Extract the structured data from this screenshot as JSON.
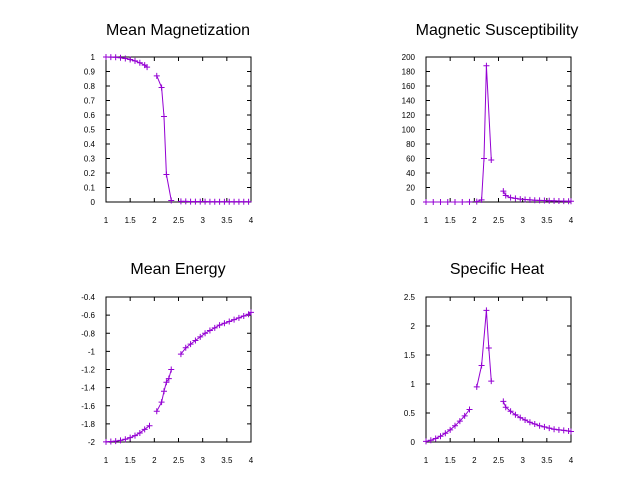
{
  "colors": {
    "series": "#9400d3",
    "axis": "#000000",
    "background": "#ffffff"
  },
  "chart_data": [
    {
      "id": "magnetization",
      "type": "line",
      "title": "Mean Magnetization",
      "xlabel": "",
      "ylabel": "",
      "xlim": [
        1,
        4
      ],
      "ylim": [
        0,
        1
      ],
      "xticks": [
        "1",
        "1.5",
        "2",
        "2.5",
        "3",
        "3.5",
        "4"
      ],
      "yticks": [
        "0",
        "0.1",
        "0.2",
        "0.3",
        "0.4",
        "0.5",
        "0.6",
        "0.7",
        "0.8",
        "0.9",
        "1"
      ],
      "grid": false,
      "series": [
        {
          "segments": [
            {
              "x": [
                1.0,
                1.1,
                1.2,
                1.3,
                1.4,
                1.5,
                1.6,
                1.7,
                1.8,
                1.85
              ],
              "y": [
                1.0,
                0.999,
                0.998,
                0.995,
                0.99,
                0.983,
                0.973,
                0.96,
                0.944,
                0.93
              ]
            },
            {
              "x": [
                2.05,
                2.15,
                2.2,
                2.25,
                2.35
              ],
              "y": [
                0.87,
                0.79,
                0.59,
                0.19,
                0.01
              ]
            },
            {
              "x": [
                2.55,
                2.65,
                2.75,
                2.85,
                2.95,
                3.05,
                3.15,
                3.25,
                3.35,
                3.45,
                3.55,
                3.65,
                3.75,
                3.85,
                3.95
              ],
              "y": [
                0.004,
                0.004,
                0.003,
                0.003,
                0.003,
                0.003,
                0.002,
                0.002,
                0.002,
                0.002,
                0.002,
                0.002,
                0.002,
                0.002,
                0.002
              ]
            }
          ]
        }
      ]
    },
    {
      "id": "susceptibility",
      "type": "line",
      "title": "Magnetic Susceptibility",
      "xlabel": "",
      "ylabel": "",
      "xlim": [
        1,
        4
      ],
      "ylim": [
        0,
        200
      ],
      "xticks": [
        "1",
        "1.5",
        "2",
        "2.5",
        "3",
        "3.5",
        "4"
      ],
      "yticks": [
        "0",
        "20",
        "40",
        "60",
        "80",
        "100",
        "120",
        "140",
        "160",
        "180",
        "200"
      ],
      "grid": false,
      "series": [
        {
          "segments": [
            {
              "x": [
                1.0,
                1.15,
                1.3,
                1.45,
                1.6,
                1.75,
                1.9
              ],
              "y": [
                0,
                0,
                0,
                0,
                0,
                0,
                0.2
              ]
            },
            {
              "x": [
                2.05,
                2.15,
                2.2,
                2.25,
                2.35
              ],
              "y": [
                0.5,
                3,
                60,
                188,
                58
              ]
            },
            {
              "x": [
                2.6,
                2.65,
                2.75,
                2.85,
                2.95,
                3.05,
                3.15,
                3.25,
                3.35,
                3.45,
                3.55,
                3.65,
                3.75,
                3.85,
                3.95,
                4.0
              ],
              "y": [
                15,
                9,
                6,
                5,
                4,
                3.5,
                3,
                2.5,
                2.2,
                2,
                1.8,
                1.6,
                1.4,
                1.2,
                1,
                1
              ]
            }
          ]
        }
      ]
    },
    {
      "id": "energy",
      "type": "line",
      "title": "Mean Energy",
      "xlabel": "",
      "ylabel": "",
      "xlim": [
        1,
        4
      ],
      "ylim": [
        -2,
        -0.4
      ],
      "xticks": [
        "1",
        "1.5",
        "2",
        "2.5",
        "3",
        "3.5",
        "4"
      ],
      "yticks": [
        "-2",
        "-1.8",
        "-1.6",
        "-1.4",
        "-1.2",
        "-1",
        "-0.8",
        "-0.6",
        "-0.4"
      ],
      "grid": false,
      "series": [
        {
          "segments": [
            {
              "x": [
                1.0,
                1.1,
                1.2,
                1.3,
                1.4,
                1.5,
                1.6,
                1.7,
                1.8,
                1.9
              ],
              "y": [
                -1.998,
                -1.995,
                -1.99,
                -1.982,
                -1.97,
                -1.952,
                -1.93,
                -1.9,
                -1.86,
                -1.82
              ]
            },
            {
              "x": [
                2.05,
                2.15,
                2.2,
                2.25,
                2.3,
                2.35
              ],
              "y": [
                -1.66,
                -1.56,
                -1.44,
                -1.34,
                -1.3,
                -1.2
              ]
            },
            {
              "x": [
                2.55,
                2.65,
                2.75,
                2.85,
                2.95,
                3.05,
                3.15,
                3.25,
                3.35,
                3.45,
                3.55,
                3.65,
                3.75,
                3.85,
                3.95,
                4.0
              ],
              "y": [
                -1.03,
                -0.96,
                -0.92,
                -0.88,
                -0.84,
                -0.8,
                -0.77,
                -0.74,
                -0.71,
                -0.69,
                -0.67,
                -0.65,
                -0.63,
                -0.61,
                -0.59,
                -0.57
              ]
            }
          ]
        }
      ]
    },
    {
      "id": "specific-heat",
      "type": "line",
      "title": "Specific Heat",
      "xlabel": "",
      "ylabel": "",
      "xlim": [
        1,
        4
      ],
      "ylim": [
        0,
        2.5
      ],
      "xticks": [
        "1",
        "1.5",
        "2",
        "2.5",
        "3",
        "3.5",
        "4"
      ],
      "yticks": [
        "0",
        "0.5",
        "1",
        "1.5",
        "2",
        "2.5"
      ],
      "grid": false,
      "series": [
        {
          "segments": [
            {
              "x": [
                1.0,
                1.1,
                1.2,
                1.3,
                1.4,
                1.5,
                1.6,
                1.7,
                1.8,
                1.9
              ],
              "y": [
                0.01,
                0.03,
                0.06,
                0.1,
                0.15,
                0.21,
                0.28,
                0.36,
                0.45,
                0.56
              ]
            },
            {
              "x": [
                2.05,
                2.15,
                2.25,
                2.3,
                2.35
              ],
              "y": [
                0.95,
                1.32,
                2.27,
                1.62,
                1.05
              ]
            },
            {
              "x": [
                2.6,
                2.65,
                2.75,
                2.85,
                2.95,
                3.05,
                3.15,
                3.25,
                3.35,
                3.45,
                3.55,
                3.65,
                3.75,
                3.85,
                3.95,
                4.0
              ],
              "y": [
                0.7,
                0.6,
                0.53,
                0.47,
                0.42,
                0.38,
                0.34,
                0.31,
                0.28,
                0.26,
                0.24,
                0.22,
                0.21,
                0.2,
                0.19,
                0.18
              ]
            }
          ]
        }
      ]
    }
  ]
}
